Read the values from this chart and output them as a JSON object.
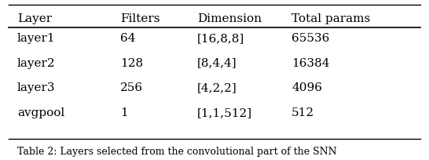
{
  "columns": [
    "Layer",
    "Filters",
    "Dimension",
    "Total params"
  ],
  "rows": [
    [
      "layer1",
      "64",
      "[16,8,8]",
      "65536"
    ],
    [
      "layer2",
      "128",
      "[8,4,4]",
      "16384"
    ],
    [
      "layer3",
      "256",
      "[4,2,2]",
      "4096"
    ],
    [
      "avgpool",
      "1",
      "[1,1,512]",
      "512"
    ]
  ],
  "background_color": "#ffffff",
  "text_color": "#000000",
  "font_size": 11,
  "caption": "Table 2: Layers selected from the convolutional part of the SNN",
  "caption_fontsize": 9
}
